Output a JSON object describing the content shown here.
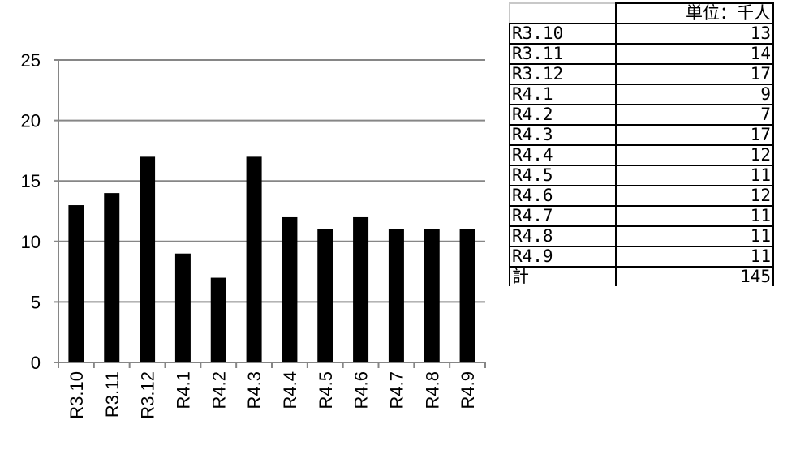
{
  "chart_data": {
    "type": "bar",
    "categories": [
      "R3.10",
      "R3.11",
      "R3.12",
      "R4.1",
      "R4.2",
      "R4.3",
      "R4.4",
      "R4.5",
      "R4.6",
      "R4.7",
      "R4.8",
      "R4.9"
    ],
    "values": [
      13,
      14,
      17,
      9,
      7,
      17,
      12,
      11,
      12,
      11,
      11,
      11
    ],
    "ylim": [
      0,
      25
    ],
    "yticks": [
      "0",
      "5",
      "10",
      "15",
      "20",
      "25"
    ],
    "grid": true,
    "bar_color": "#000000",
    "grid_color": "#868686"
  },
  "table": {
    "unit": "単位：千人",
    "rows": [
      {
        "label": "R3.10",
        "value": "13"
      },
      {
        "label": "R3.11",
        "value": "14"
      },
      {
        "label": "R3.12",
        "value": "17"
      },
      {
        "label": "R4.1",
        "value": "9"
      },
      {
        "label": "R4.2",
        "value": "7"
      },
      {
        "label": "R4.3",
        "value": "17"
      },
      {
        "label": "R4.4",
        "value": "12"
      },
      {
        "label": "R4.5",
        "value": "11"
      },
      {
        "label": "R4.6",
        "value": "12"
      },
      {
        "label": "R4.7",
        "value": "11"
      },
      {
        "label": "R4.8",
        "value": "11"
      },
      {
        "label": "R4.9",
        "value": "11"
      }
    ],
    "total_label": "計",
    "total_value": "145"
  }
}
